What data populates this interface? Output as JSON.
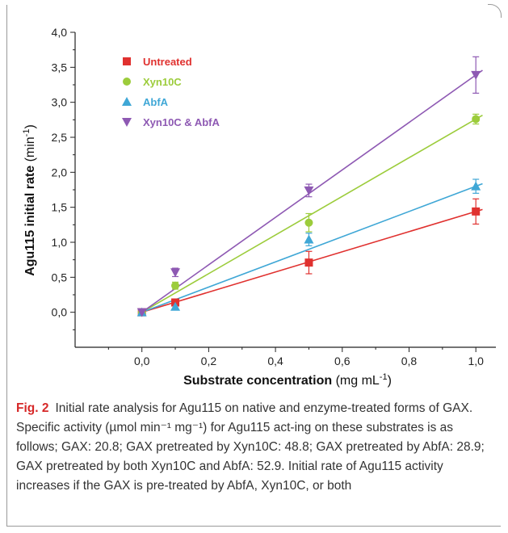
{
  "chart_data": {
    "type": "scatter",
    "xlabel_bold": "Substrate concentration",
    "xlabel_unit": "(mg mL",
    "xlabel_sup": "-1",
    "xlabel_close": ")",
    "ylabel_bold": "Agu115 initial rate",
    "ylabel_unit": "(min",
    "ylabel_sup": "-1",
    "ylabel_close": ")",
    "xlim": [
      -0.2,
      1.06
    ],
    "ylim": [
      -0.5,
      4.0
    ],
    "xticks": [
      0.0,
      0.2,
      0.4,
      0.6,
      0.8,
      1.0
    ],
    "xtick_labels": [
      "0,0",
      "0,2",
      "0,4",
      "0,6",
      "0,8",
      "1,0"
    ],
    "yticks": [
      0.0,
      0.5,
      1.0,
      1.5,
      2.0,
      2.5,
      3.0,
      3.5,
      4.0
    ],
    "ytick_labels": [
      "0,0",
      "0,5",
      "1,0",
      "1,5",
      "2,0",
      "2,5",
      "3,0",
      "3,5",
      "4,0"
    ],
    "legend_position": "top-left",
    "grid": false,
    "fit_lines": true,
    "series": [
      {
        "name": "Untreated",
        "marker": "square",
        "color": "#e0312f",
        "x": [
          0.0,
          0.1,
          0.5,
          1.0
        ],
        "y": [
          0.0,
          0.14,
          0.71,
          1.44
        ],
        "err": [
          0.02,
          0.03,
          0.16,
          0.18
        ],
        "slope": 1.44
      },
      {
        "name": "Xyn10C",
        "marker": "circle",
        "color": "#9ccc3b",
        "x": [
          0.0,
          0.1,
          0.5,
          1.0
        ],
        "y": [
          0.0,
          0.38,
          1.28,
          2.76
        ],
        "err": [
          0.02,
          0.05,
          0.13,
          0.07
        ],
        "slope": 2.76
      },
      {
        "name": "AbfA",
        "marker": "triangle-up",
        "color": "#3fa7d6",
        "x": [
          0.0,
          0.1,
          0.5,
          1.0
        ],
        "y": [
          0.0,
          0.08,
          1.04,
          1.8
        ],
        "err": [
          0.02,
          0.04,
          0.09,
          0.1
        ],
        "slope": 1.8
      },
      {
        "name": "Xyn10C & AbfA",
        "marker": "triangle-down",
        "color": "#8e59b3",
        "x": [
          0.0,
          0.1,
          0.5,
          1.0
        ],
        "y": [
          0.0,
          0.57,
          1.74,
          3.39
        ],
        "err": [
          0.02,
          0.06,
          0.09,
          0.26
        ],
        "slope": 3.39
      }
    ]
  },
  "caption": {
    "label": "Fig. 2",
    "text": "Initial rate analysis for Agu115 on native and enzyme-treated forms of GAX. Specific activity (µmol min⁻¹ mg⁻¹) for Agu115 act-ing on these substrates is as follows; GAX: 20.8; GAX pretreated by Xyn10C: 48.8; GAX pretreated by AbfA: 28.9; GAX pretreated by both Xyn10C and AbfA: 52.9. Initial rate of Agu115 activity increases if the GAX is pre-treated by AbfA, Xyn10C, or both"
  }
}
